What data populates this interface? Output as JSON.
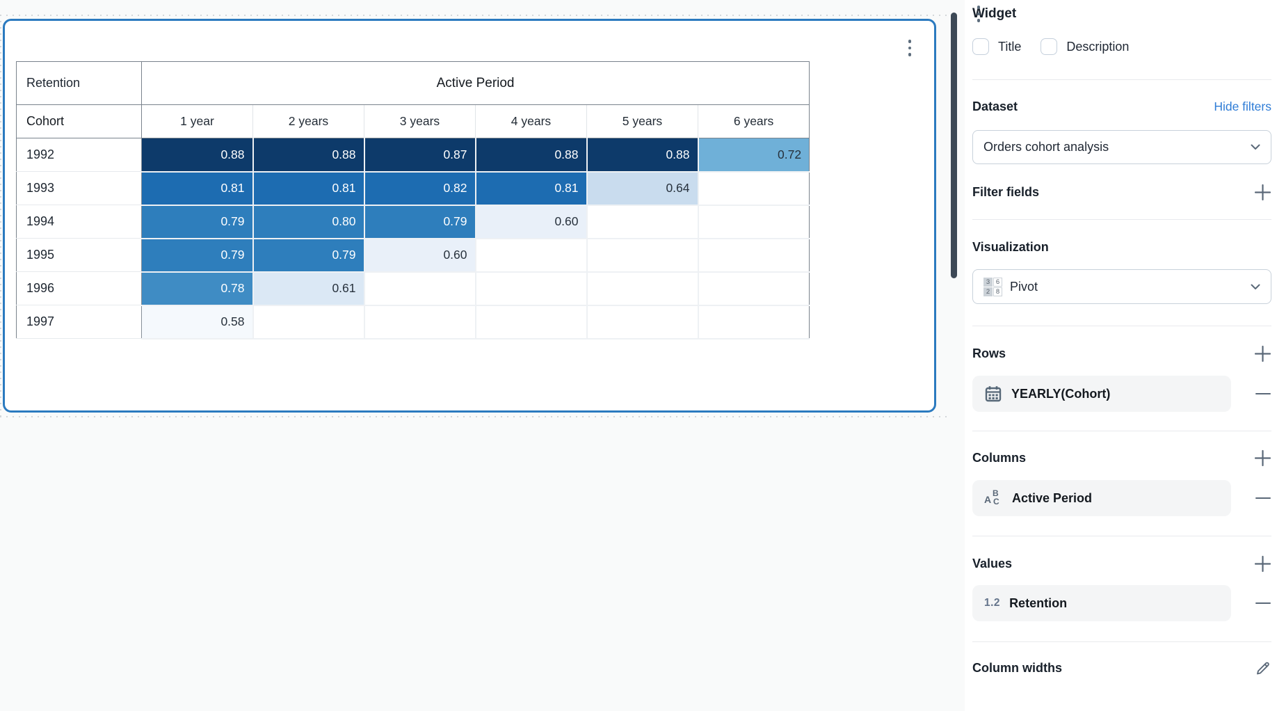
{
  "chart_data": {
    "type": "heatmap",
    "title": "Retention",
    "column_group": "Active Period",
    "row_dimension": "Cohort",
    "columns": [
      "1 year",
      "2 years",
      "3 years",
      "4 years",
      "5 years",
      "6 years"
    ],
    "rows": [
      "1992",
      "1993",
      "1994",
      "1995",
      "1996",
      "1997"
    ],
    "values": [
      [
        0.88,
        0.88,
        0.87,
        0.88,
        0.88,
        0.72
      ],
      [
        0.81,
        0.81,
        0.82,
        0.81,
        0.64,
        null
      ],
      [
        0.79,
        0.8,
        0.79,
        0.6,
        null,
        null
      ],
      [
        0.79,
        0.79,
        0.6,
        null,
        null,
        null
      ],
      [
        0.78,
        0.61,
        null,
        null,
        null,
        null
      ],
      [
        0.58,
        null,
        null,
        null,
        null,
        null
      ]
    ],
    "color_scale": [
      {
        "min": 0.85,
        "bg": "#0d3a6a",
        "fg": "#ffffff"
      },
      {
        "min": 0.805,
        "bg": "#1d6cb1",
        "fg": "#ffffff"
      },
      {
        "min": 0.785,
        "bg": "#2e7ebc",
        "fg": "#ffffff"
      },
      {
        "min": 0.77,
        "bg": "#3f8cc4",
        "fg": "#ffffff"
      },
      {
        "min": 0.7,
        "bg": "#6fb0d8",
        "fg": "#27313c"
      },
      {
        "min": 0.625,
        "bg": "#c9dcee",
        "fg": "#27313c"
      },
      {
        "min": 0.605,
        "bg": "#dbe8f5",
        "fg": "#27313c"
      },
      {
        "min": 0.59,
        "bg": "#e9f0f9",
        "fg": "#27313c"
      },
      {
        "min": 0.0,
        "bg": "#f5f9fd",
        "fg": "#27313c"
      }
    ]
  },
  "panel": {
    "title": "Widget",
    "title_checkbox_label": "Title",
    "description_checkbox_label": "Description",
    "dataset": {
      "label": "Dataset",
      "hide_filters_label": "Hide filters",
      "selected": "Orders cohort analysis"
    },
    "filter_fields": {
      "label": "Filter fields"
    },
    "visualization": {
      "label": "Visualization",
      "selected": "Pivot",
      "icon_digits": [
        "3",
        "6",
        "2",
        "8"
      ]
    },
    "rows_section": {
      "label": "Rows",
      "item": "YEARLY(Cohort)"
    },
    "columns_section": {
      "label": "Columns",
      "item": "Active Period"
    },
    "values_section": {
      "label": "Values",
      "item": "Retention",
      "item_icon_text": "1.2"
    },
    "column_widths": {
      "label": "Column widths"
    }
  },
  "colors": {
    "widget_focus_border": "#2b7abf",
    "link_blue": "#2e7cd6",
    "scrollbar": "#3d4956",
    "pill_background": "#f4f5f6",
    "heatmap_darkest": "#0d3a6a",
    "heatmap_lightest": "#f5f9fd"
  }
}
